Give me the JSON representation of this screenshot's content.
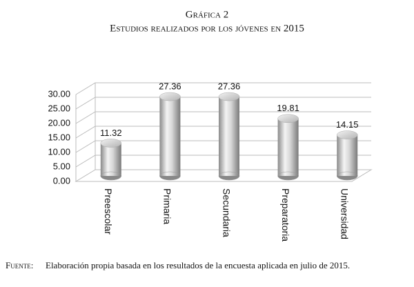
{
  "chart_data": {
    "type": "bar",
    "title": "Gráfica 2",
    "subtitle": "Estudios realizados por los jóvenes en 2015",
    "categories": [
      "Preescolar",
      "Primaria",
      "Secundaria",
      "Preparatoria",
      "Universidad"
    ],
    "values": [
      11.32,
      27.36,
      27.36,
      19.81,
      14.15
    ],
    "ylim": [
      0,
      30
    ],
    "yticks": [
      {
        "value": 0,
        "label": "0.00"
      },
      {
        "value": 5,
        "label": "5.00"
      },
      {
        "value": 10,
        "label": "10.00"
      },
      {
        "value": 15,
        "label": "15.00"
      },
      {
        "value": 20,
        "label": "20.00"
      },
      {
        "value": 25,
        "label": "25.00"
      },
      {
        "value": 30,
        "label": "30.00"
      }
    ],
    "grid": true,
    "color": "#c8c8c8",
    "source_label": "Fuente:",
    "source": "Elaboración propia basada en los resultados de la encuesta aplicada en julio de 2015."
  }
}
